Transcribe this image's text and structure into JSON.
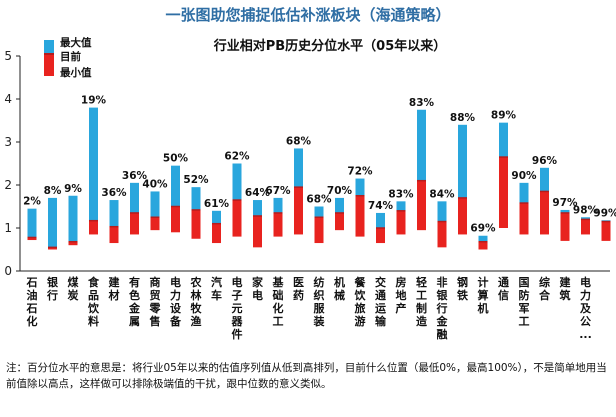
{
  "banner": "一张图助您捕捉低估补涨板块（海通策略）",
  "note": "注：百分位水平的意思是：将行业05年以来的估值序列值从低到高排列，目前什么位置（最低0%，最高100%），不是简单地用当前值除以高点，这样做可以排除极端值的干扰，跟中位数的意义类似。",
  "colors": {
    "upper": "#29a6dd",
    "lower": "#e8231f",
    "current": "#b71c1c"
  },
  "chart_data": {
    "type": "bar",
    "title": "行业相对PB历史分位水平（05年以来）",
    "legend": [
      "最大值",
      "目前",
      "最小值"
    ],
    "legend_position": "top-left",
    "ylim": [
      0,
      5
    ],
    "yticks": [
      "0",
      "1",
      "2",
      "3",
      "4",
      "5"
    ],
    "series_fields": [
      "min",
      "current",
      "max"
    ],
    "categories": [
      {
        "label": "石油石化",
        "min": 0.72,
        "current": 0.78,
        "max": 1.45,
        "pct": "2%"
      },
      {
        "label": "银行",
        "min": 0.5,
        "current": 0.55,
        "max": 1.7,
        "pct": "8%"
      },
      {
        "label": "煤炭",
        "min": 0.6,
        "current": 0.68,
        "max": 1.75,
        "pct": "9%"
      },
      {
        "label": "食品饮料",
        "min": 0.85,
        "current": 1.17,
        "max": 3.8,
        "pct": "19%"
      },
      {
        "label": "建材",
        "min": 0.65,
        "current": 1.03,
        "max": 1.65,
        "pct": "36%"
      },
      {
        "label": "有色金属",
        "min": 0.85,
        "current": 1.35,
        "max": 2.05,
        "pct": "36%"
      },
      {
        "label": "商贸零售",
        "min": 0.95,
        "current": 1.25,
        "max": 1.85,
        "pct": "40%"
      },
      {
        "label": "电力设备",
        "min": 0.9,
        "current": 1.5,
        "max": 2.45,
        "pct": "50%"
      },
      {
        "label": "农林牧渔",
        "min": 0.75,
        "current": 1.42,
        "max": 1.95,
        "pct": "52%"
      },
      {
        "label": "汽车",
        "min": 0.65,
        "current": 1.1,
        "max": 1.4,
        "pct": "61%"
      },
      {
        "label": "电子元器件",
        "min": 0.8,
        "current": 1.65,
        "max": 2.5,
        "pct": "62%"
      },
      {
        "label": "家电",
        "min": 0.55,
        "current": 1.28,
        "max": 1.65,
        "pct": "64%"
      },
      {
        "label": "基础化工",
        "min": 0.8,
        "current": 1.35,
        "max": 1.7,
        "pct": "67%"
      },
      {
        "label": "医药",
        "min": 0.85,
        "current": 1.95,
        "max": 2.85,
        "pct": "68%"
      },
      {
        "label": "纺织服装",
        "min": 0.65,
        "current": 1.25,
        "max": 1.5,
        "pct": "68%"
      },
      {
        "label": "机械",
        "min": 0.95,
        "current": 1.35,
        "max": 1.7,
        "pct": "70%"
      },
      {
        "label": "餐饮旅游",
        "min": 0.8,
        "current": 1.75,
        "max": 2.15,
        "pct": "72%"
      },
      {
        "label": "交通运输",
        "min": 0.65,
        "current": 1.0,
        "max": 1.35,
        "pct": "74%"
      },
      {
        "label": "房地产",
        "min": 0.85,
        "current": 1.4,
        "max": 1.62,
        "pct": "83%"
      },
      {
        "label": "轻工制造",
        "min": 0.95,
        "current": 2.1,
        "max": 3.75,
        "pct": "83%"
      },
      {
        "label": "非银行金融",
        "min": 0.55,
        "current": 1.15,
        "max": 1.62,
        "pct": "84%"
      },
      {
        "label": "钢铁",
        "min": 0.85,
        "current": 1.7,
        "max": 3.4,
        "pct": "88%"
      },
      {
        "label": "计算机",
        "min": 0.5,
        "current": 0.68,
        "max": 0.82,
        "pct": "69%"
      },
      {
        "label": "通信",
        "min": 1.0,
        "current": 2.65,
        "max": 3.45,
        "pct": "89%"
      },
      {
        "label": "国防军工",
        "min": 0.85,
        "current": 1.58,
        "max": 2.05,
        "pct": "90%"
      },
      {
        "label": "综合",
        "min": 0.85,
        "current": 1.85,
        "max": 2.4,
        "pct": "96%"
      },
      {
        "label": "建筑",
        "min": 0.7,
        "current": 1.35,
        "max": 1.42,
        "pct": "97%"
      },
      {
        "label": "电力及公...",
        "min": 0.85,
        "current": 1.2,
        "max": 1.25,
        "pct": "98%"
      },
      {
        "label": "",
        "min": 0.7,
        "current": 1.15,
        "max": 1.18,
        "pct": "99%"
      }
    ]
  }
}
